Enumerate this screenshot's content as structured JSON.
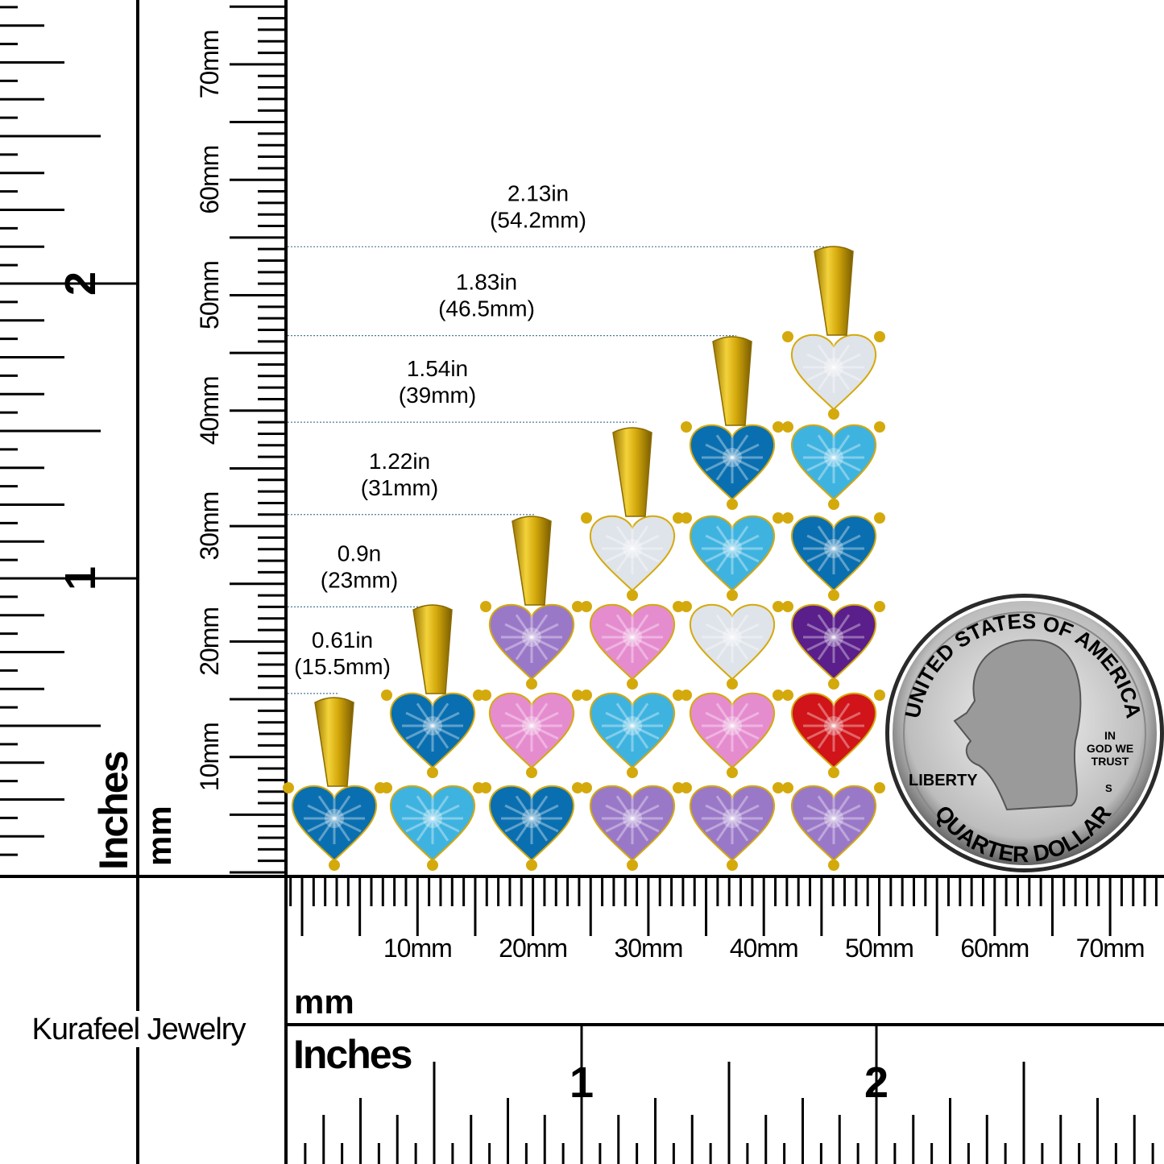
{
  "brand": "Kurafeel Jewelry",
  "rulers": {
    "mm_unit_label": "mm",
    "inch_unit_label": "Inches",
    "mm_tick_labels": [
      "10mm",
      "20mm",
      "30mm",
      "40mm",
      "50mm",
      "60mm",
      "70mm"
    ],
    "inch_tick_labels": [
      "1",
      "2"
    ]
  },
  "measurements": [
    {
      "inches": "0.61in",
      "mm": "(15.5mm)",
      "value_mm": 15.5
    },
    {
      "inches": "0.9n",
      "mm": "(23mm)",
      "value_mm": 23
    },
    {
      "inches": "1.22in",
      "mm": "(31mm)",
      "value_mm": 31
    },
    {
      "inches": "1.54in",
      "mm": "(39mm)",
      "value_mm": 39
    },
    {
      "inches": "1.83in",
      "mm": "(46.5mm)",
      "value_mm": 46.5
    },
    {
      "inches": "2.13in",
      "mm": "(54.2mm)",
      "value_mm": 54.2
    }
  ],
  "pendants": [
    {
      "stones": [
        "blue"
      ]
    },
    {
      "stones": [
        "aqua",
        "blue"
      ]
    },
    {
      "stones": [
        "blue",
        "pink",
        "lavender"
      ]
    },
    {
      "stones": [
        "lavender",
        "aqua",
        "pink",
        "white"
      ]
    },
    {
      "stones": [
        "lavender",
        "pink",
        "white",
        "aqua",
        "blue"
      ]
    },
    {
      "stones": [
        "lavender",
        "red",
        "purple",
        "blue",
        "aqua",
        "white"
      ]
    }
  ],
  "stone_colors": {
    "blue": "#0a6fb0",
    "aqua": "#3fb3e0",
    "pink": "#e58ccf",
    "lavender": "#9a78c8",
    "white": "#dfe3ea",
    "purple": "#5a1f8a",
    "red": "#d0141a"
  },
  "metal_color": "#d4a90c",
  "coin": {
    "top_text": "UNITED STATES OF AMERICA",
    "bottom_text": "QUARTER DOLLAR",
    "liberty": "LIBERTY",
    "motto": [
      "IN",
      "GOD WE",
      "TRUST"
    ],
    "mint": "S"
  }
}
